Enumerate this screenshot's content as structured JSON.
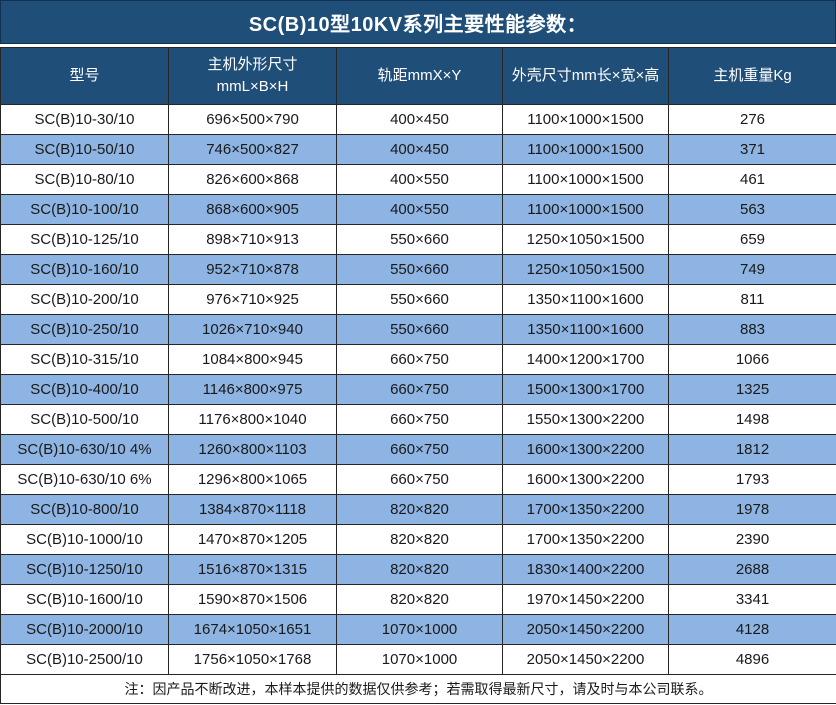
{
  "title": "SC(B)10型10KV系列主要性能参数：",
  "note": "注：因产品不断改进，本样本提供的数据仅供参考；若需取得最新尺寸，请及时与本公司联系。",
  "colors": {
    "header_bg": "#1f4e79",
    "stripe_bg": "#8db4e2",
    "border_color": "#262626",
    "text_color": "#1a1a1a",
    "header_text": "#ffffff"
  },
  "table": {
    "columns": [
      {
        "id": "model",
        "lines": [
          "型号"
        ]
      },
      {
        "id": "host-dimensions",
        "lines": [
          "主机外形尺寸",
          "mmL×B×H"
        ]
      },
      {
        "id": "rail-gauge",
        "lines": [
          "轨距mmX×Y"
        ]
      },
      {
        "id": "enclosure-dimensions",
        "lines": [
          "外壳尺寸mm长×宽×高"
        ]
      },
      {
        "id": "weight",
        "lines": [
          "主机重量Kg"
        ]
      }
    ],
    "rows": [
      [
        "SC(B)10-30/10",
        "696×500×790",
        "400×450",
        "1100×1000×1500",
        "276"
      ],
      [
        "SC(B)10-50/10",
        "746×500×827",
        "400×450",
        "1100×1000×1500",
        "371"
      ],
      [
        "SC(B)10-80/10",
        "826×600×868",
        "400×550",
        "1100×1000×1500",
        "461"
      ],
      [
        "SC(B)10-100/10",
        "868×600×905",
        "400×550",
        "1100×1000×1500",
        "563"
      ],
      [
        "SC(B)10-125/10",
        "898×710×913",
        "550×660",
        "1250×1050×1500",
        "659"
      ],
      [
        "SC(B)10-160/10",
        "952×710×878",
        "550×660",
        "1250×1050×1500",
        "749"
      ],
      [
        "SC(B)10-200/10",
        "976×710×925",
        "550×660",
        "1350×1100×1600",
        "811"
      ],
      [
        "SC(B)10-250/10",
        "1026×710×940",
        "550×660",
        "1350×1100×1600",
        "883"
      ],
      [
        "SC(B)10-315/10",
        "1084×800×945",
        "660×750",
        "1400×1200×1700",
        "1066"
      ],
      [
        "SC(B)10-400/10",
        "1146×800×975",
        "660×750",
        "1500×1300×1700",
        "1325"
      ],
      [
        "SC(B)10-500/10",
        "1176×800×1040",
        "660×750",
        "1550×1300×2200",
        "1498"
      ],
      [
        "SC(B)10-630/10 4%",
        "1260×800×1103",
        "660×750",
        "1600×1300×2200",
        "1812"
      ],
      [
        "SC(B)10-630/10 6%",
        "1296×800×1065",
        "660×750",
        "1600×1300×2200",
        "1793"
      ],
      [
        "SC(B)10-800/10",
        "1384×870×1118",
        "820×820",
        "1700×1350×2200",
        "1978"
      ],
      [
        "SC(B)10-1000/10",
        "1470×870×1205",
        "820×820",
        "1700×1350×2200",
        "2390"
      ],
      [
        "SC(B)10-1250/10",
        "1516×870×1315",
        "820×820",
        "1830×1400×2200",
        "2688"
      ],
      [
        "SC(B)10-1600/10",
        "1590×870×1506",
        "820×820",
        "1970×1450×2200",
        "3341"
      ],
      [
        "SC(B)10-2000/10",
        "1674×1050×1651",
        "1070×1000",
        "2050×1450×2200",
        "4128"
      ],
      [
        "SC(B)10-2500/10",
        "1756×1050×1768",
        "1070×1000",
        "2050×1450×2200",
        "4896"
      ]
    ]
  }
}
